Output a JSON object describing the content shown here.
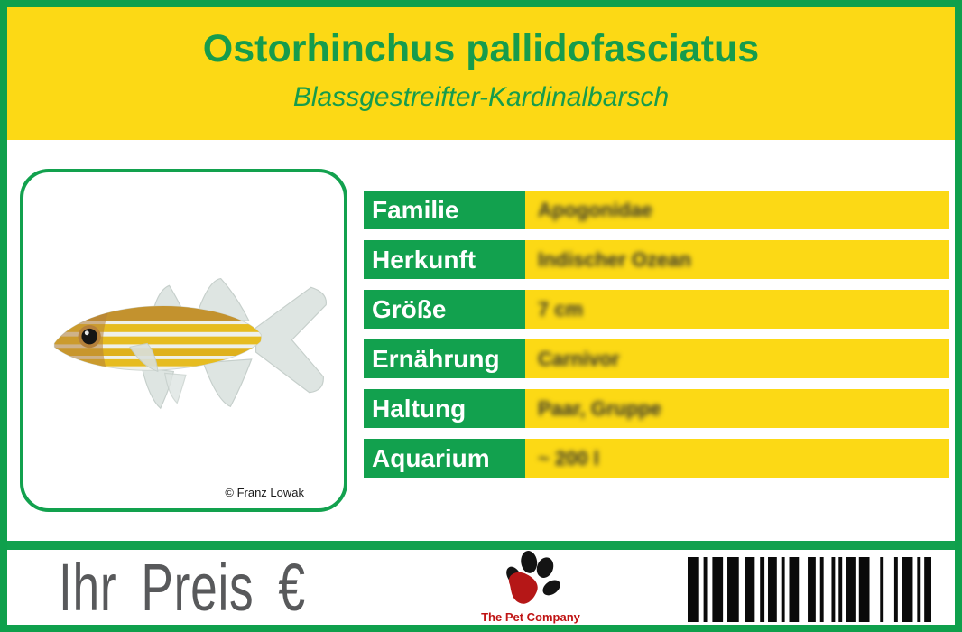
{
  "colors": {
    "green": "#12a14e",
    "yellow": "#fcd915",
    "title_green": "#169c4c",
    "price_gray": "#58595b",
    "logo_red": "#c01414"
  },
  "header": {
    "title": "Ostorhinchus pallidofasciatus",
    "subtitle": "Blassgestreifter-Kardinalbarsch"
  },
  "photo": {
    "credit": "© Franz Lowak"
  },
  "table": {
    "values_blurred": true,
    "rows": [
      {
        "label": "Familie",
        "value": "Apogonidae"
      },
      {
        "label": "Herkunft",
        "value": "Indischer Ozean"
      },
      {
        "label": "Größe",
        "value": "7 cm"
      },
      {
        "label": "Ernährung",
        "value": "Carnivor"
      },
      {
        "label": "Haltung",
        "value": "Paar, Gruppe"
      },
      {
        "label": "Aquarium",
        "value": "~ 200 l"
      }
    ]
  },
  "footer": {
    "price_label": "Ihr Preis €",
    "logo_text": "The Pet Company"
  },
  "barcode": {
    "pattern": [
      [
        13,
        5
      ],
      [
        4,
        6
      ],
      [
        12,
        5
      ],
      [
        13,
        7
      ],
      [
        11,
        6
      ],
      [
        5,
        4
      ],
      [
        10,
        5
      ],
      [
        4,
        5
      ],
      [
        11,
        10
      ],
      [
        9,
        5
      ],
      [
        4,
        9
      ],
      [
        4,
        4
      ],
      [
        4,
        4
      ],
      [
        11,
        4
      ],
      [
        12,
        12
      ],
      [
        4,
        12
      ],
      [
        4,
        5
      ],
      [
        12,
        5
      ],
      [
        4,
        4
      ],
      [
        8,
        0
      ]
    ]
  }
}
